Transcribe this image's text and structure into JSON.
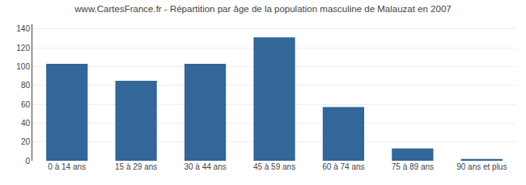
{
  "chart_data": {
    "type": "bar",
    "title": "www.CartesFrance.fr - Répartition par âge de la population masculine de Malauzat en 2007",
    "categories": [
      "0 à 14 ans",
      "15 à 29 ans",
      "30 à 44 ans",
      "45 à 59 ans",
      "60 à 74 ans",
      "75 à 89 ans",
      "90 ans et plus"
    ],
    "values": [
      103,
      85,
      103,
      131,
      57,
      13,
      2
    ],
    "color": "#336699",
    "ylim": [
      0,
      145
    ],
    "yticks": [
      0,
      20,
      40,
      60,
      80,
      100,
      120,
      140
    ],
    "grid": true
  }
}
